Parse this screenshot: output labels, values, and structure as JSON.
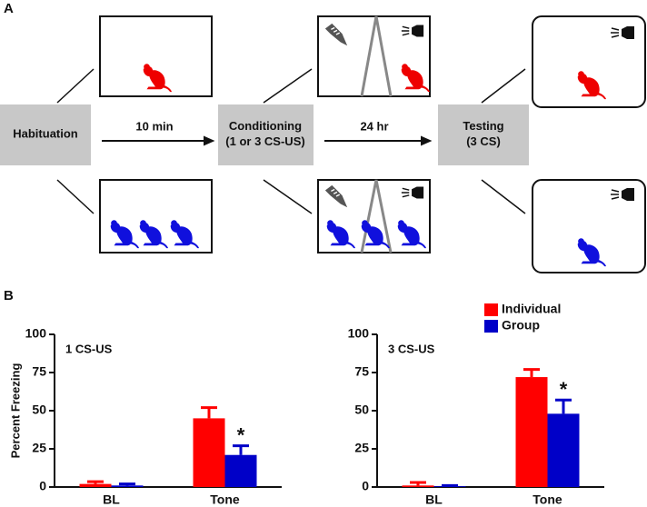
{
  "panel_a": {
    "label": "A",
    "stages": [
      [
        "Habituation"
      ],
      [
        "Conditioning",
        "(1 or 3 CS-US)"
      ],
      [
        "Testing",
        "(3 CS)"
      ]
    ],
    "intervals": [
      "10 min",
      "24 hr"
    ]
  },
  "panel_b": {
    "label": "B"
  },
  "chart_data": [
    {
      "type": "bar",
      "title": "1 CS-US",
      "y_label": "Percent Freezing",
      "categories": [
        "BL",
        "Tone"
      ],
      "series": [
        {
          "color": "#ff0000",
          "values": [
            2,
            45
          ],
          "errors": [
            1.5,
            7
          ]
        },
        {
          "color": "#0000c8",
          "values": [
            1,
            21
          ],
          "errors": [
            1,
            6
          ]
        }
      ],
      "ylim": [
        0,
        100
      ],
      "yticks": [
        0,
        25,
        50,
        75,
        100
      ],
      "significance": "*"
    },
    {
      "type": "bar",
      "title": "3 CS-US",
      "categories": [
        "BL",
        "Tone"
      ],
      "series": [
        {
          "name": "Individual",
          "color": "#ff0000",
          "values": [
            1,
            72
          ],
          "errors": [
            2,
            5
          ]
        },
        {
          "name": "Group",
          "color": "#0000c8",
          "values": [
            0.5,
            48
          ],
          "errors": [
            0.5,
            9
          ]
        }
      ],
      "ylim": [
        0,
        100
      ],
      "yticks": [
        0,
        25,
        50,
        75,
        100
      ],
      "significance": "*"
    }
  ]
}
